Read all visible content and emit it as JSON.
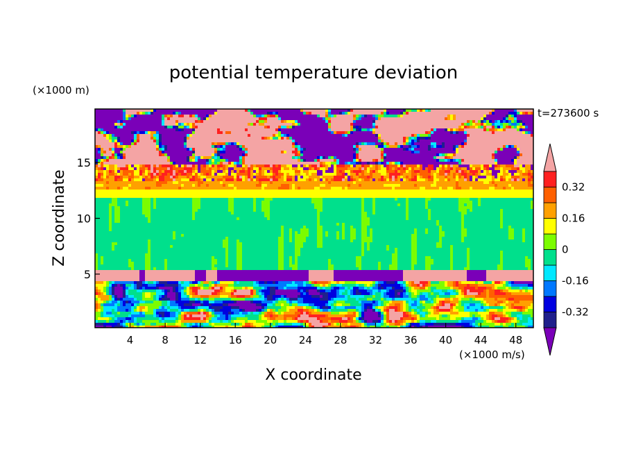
{
  "chart_data": {
    "type": "heatmap",
    "title": "potential temperature deviation",
    "xlabel": "X coordinate",
    "ylabel": "Z coordinate",
    "x_unit": "(×1000 m/s)",
    "y_unit": "(×1000 m)",
    "time_label": "t=273600 s",
    "xlim": [
      0,
      50
    ],
    "ylim": [
      0.2,
      19.8
    ],
    "x_ticks": [
      4,
      8,
      12,
      16,
      20,
      24,
      28,
      32,
      36,
      40,
      44,
      48
    ],
    "y_ticks": [
      5,
      10,
      15
    ],
    "colorbar": {
      "levels": [
        -0.48,
        -0.4,
        -0.32,
        -0.24,
        -0.16,
        -0.08,
        0,
        0.08,
        0.16,
        0.24,
        0.32,
        0.4,
        0.48
      ],
      "colors": [
        "#7a00b8",
        "#20208c",
        "#0000e0",
        "#0078ff",
        "#00e8ff",
        "#00e08c",
        "#7cfc00",
        "#ffff00",
        "#ffa000",
        "#ff6000",
        "#ff2020",
        "#f4a4a4"
      ],
      "tick_labels": [
        "-0.32",
        "-0.16",
        "0",
        "0.16",
        "0.32"
      ],
      "tick_values": [
        -0.32,
        -0.16,
        0,
        0.16,
        0.32
      ],
      "under_color": "#7a00b8",
      "over_color": "#f4a4a4"
    }
  }
}
